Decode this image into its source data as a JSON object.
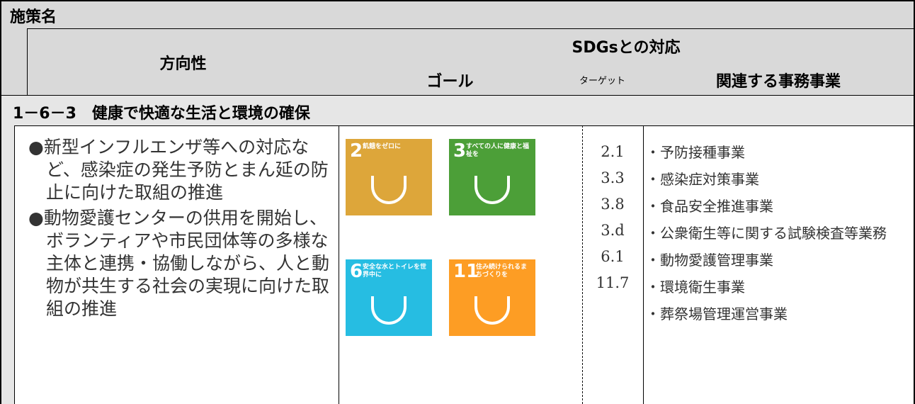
{
  "header": {
    "title": "施策名",
    "direction": "方向性",
    "sdgs": "SDGsとの対応",
    "goal": "ゴール",
    "target": "ターゲット",
    "projects": "関連する事務事業"
  },
  "section": {
    "title": "1－6－3　健康で快適な生活と環境の確保"
  },
  "directions": [
    "●新型インフルエンザ等への対応など、感染症の発生予防とまん延の防止に向けた取組の推進",
    "●動物愛護センターの供用を開始し、ボランティアや市民団体等の多様な主体と連携・協働しながら、人と動物が共生する社会の実現に向けた取組の推進"
  ],
  "goals": [
    {
      "number": "2",
      "label": "飢餓をゼロに",
      "color": "#dda63a"
    },
    {
      "number": "3",
      "label": "すべての人に健康と福祉を",
      "color": "#4c9f38"
    },
    {
      "number": "6",
      "label": "安全な水とトイレを世界中に",
      "color": "#26bde2"
    },
    {
      "number": "11",
      "label": "住み続けられるまちづくりを",
      "color": "#fd9d24"
    }
  ],
  "targets": [
    "2.1",
    "3.3",
    "3.8",
    "3.d",
    "6.1",
    "11.7"
  ],
  "projects": [
    "・予防接種事業",
    "・感染症対策事業",
    "・食品安全推進事業",
    "・公衆衛生等に関する試験検査等業務",
    "・動物愛護管理事業",
    "・環境衛生事業",
    "・葬祭場管理運営事業"
  ]
}
